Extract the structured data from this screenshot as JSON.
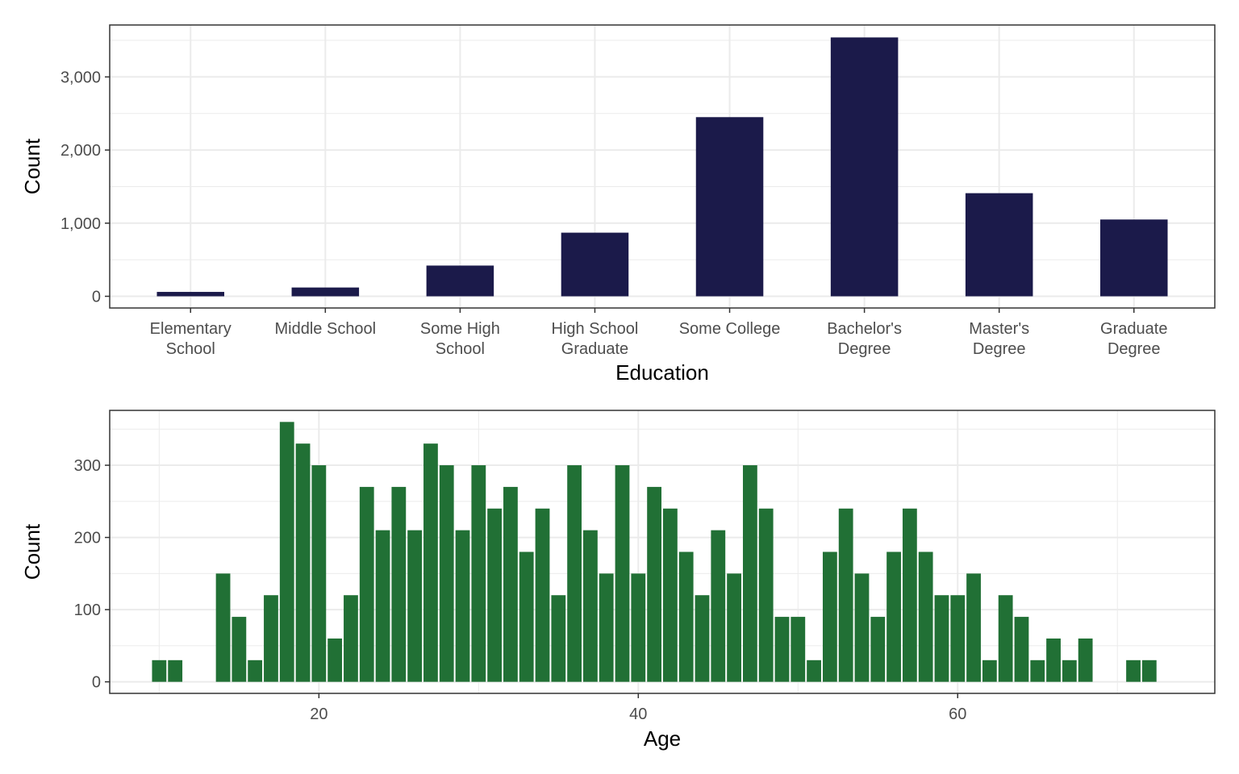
{
  "colors": {
    "education_bar": "#1b1a4a",
    "age_bar": "#217035",
    "grid": "#ebebeb",
    "panel_border": "#333333",
    "tick_text": "#4d4d4d"
  },
  "chart_data": [
    {
      "type": "bar",
      "xlabel": "Education",
      "ylabel": "Count",
      "categories": [
        [
          "Elementary",
          "School"
        ],
        [
          "Middle School"
        ],
        [
          "Some High",
          "School"
        ],
        [
          "High School",
          "Graduate"
        ],
        [
          "Some College"
        ],
        [
          "Bachelor's",
          "Degree"
        ],
        [
          "Master's",
          "Degree"
        ],
        [
          "Graduate",
          "Degree"
        ]
      ],
      "values": [
        60,
        120,
        420,
        870,
        2450,
        3540,
        1410,
        1050
      ],
      "ylim": [
        -160,
        3710
      ],
      "yticks": [
        0,
        1000,
        2000,
        3000
      ],
      "ytick_labels": [
        "0",
        "1,000",
        "2,000",
        "3,000"
      ],
      "grid": true,
      "legend": "none"
    },
    {
      "type": "bar",
      "xlabel": "Age",
      "ylabel": "Count",
      "x": [
        10,
        11,
        12,
        13,
        14,
        15,
        16,
        17,
        18,
        19,
        20,
        21,
        22,
        23,
        24,
        25,
        26,
        27,
        28,
        29,
        30,
        31,
        32,
        33,
        34,
        35,
        36,
        37,
        38,
        39,
        40,
        41,
        42,
        43,
        44,
        45,
        46,
        47,
        48,
        49,
        50,
        51,
        52,
        53,
        54,
        55,
        56,
        57,
        58,
        59,
        60,
        61,
        62,
        63,
        64,
        65,
        66,
        67,
        68,
        69,
        70,
        71,
        72,
        73
      ],
      "values": [
        30,
        30,
        0,
        0,
        150,
        90,
        30,
        120,
        360,
        330,
        300,
        60,
        120,
        270,
        210,
        270,
        210,
        330,
        300,
        210,
        300,
        240,
        270,
        180,
        240,
        120,
        300,
        210,
        150,
        300,
        150,
        270,
        240,
        180,
        120,
        210,
        150,
        300,
        240,
        90,
        90,
        30,
        180,
        240,
        150,
        90,
        180,
        240,
        180,
        120,
        120,
        150,
        30,
        120,
        90,
        30,
        60,
        30,
        60,
        0,
        0,
        30,
        30,
        0
      ],
      "xlim": [
        6.9,
        76.1
      ],
      "ylim": [
        -16,
        376
      ],
      "xticks": [
        20,
        40,
        60
      ],
      "xtick_labels": [
        "20",
        "40",
        "60"
      ],
      "yticks": [
        0,
        100,
        200,
        300
      ],
      "ytick_labels": [
        "0",
        "100",
        "200",
        "300"
      ],
      "grid": true,
      "legend": "none"
    }
  ]
}
